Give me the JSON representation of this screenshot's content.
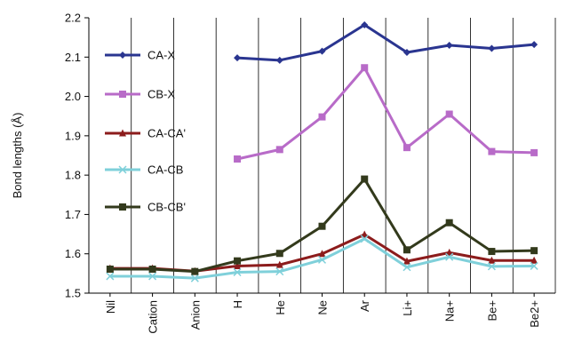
{
  "chart_data": {
    "type": "line",
    "title": "",
    "xlabel": "",
    "ylabel": "Bond lengths (Å)",
    "ylim": [
      1.5,
      2.2
    ],
    "yticks": [
      "1.5",
      "1.6",
      "1.7",
      "1.8",
      "1.9",
      "2.0",
      "2.1",
      "2.2"
    ],
    "grid": "vertical",
    "legend_position": "top-left",
    "categories": [
      "Nil",
      "Cation",
      "Anion",
      "H",
      "He",
      "Ne",
      "Ar",
      "Li+",
      "Na+",
      "Be+",
      "Be2+"
    ],
    "series": [
      {
        "name": "CA-X",
        "color": "#2a3590",
        "marker": "diamond",
        "values": [
          null,
          null,
          null,
          2.098,
          2.092,
          2.115,
          2.182,
          2.112,
          2.13,
          2.122,
          2.132
        ]
      },
      {
        "name": "CB-X",
        "color": "#b86bc8",
        "marker": "square",
        "values": [
          null,
          null,
          null,
          1.841,
          1.865,
          1.948,
          2.073,
          1.87,
          1.955,
          1.86,
          1.857
        ]
      },
      {
        "name": "CA-CA'",
        "color": "#8c1c1c",
        "marker": "triangle",
        "values": [
          1.563,
          1.563,
          1.556,
          1.569,
          1.572,
          1.6,
          1.649,
          1.581,
          1.603,
          1.583,
          1.583
        ]
      },
      {
        "name": "CA-CB",
        "color": "#7fd0da",
        "marker": "x",
        "values": [
          1.543,
          1.543,
          1.538,
          1.553,
          1.555,
          1.585,
          1.638,
          1.566,
          1.592,
          1.568,
          1.569
        ]
      },
      {
        "name": "CB-CB'",
        "color": "#333a1c",
        "marker": "square",
        "values": [
          1.561,
          1.561,
          1.555,
          1.582,
          1.601,
          1.67,
          1.79,
          1.61,
          1.679,
          1.606,
          1.608
        ]
      }
    ]
  }
}
